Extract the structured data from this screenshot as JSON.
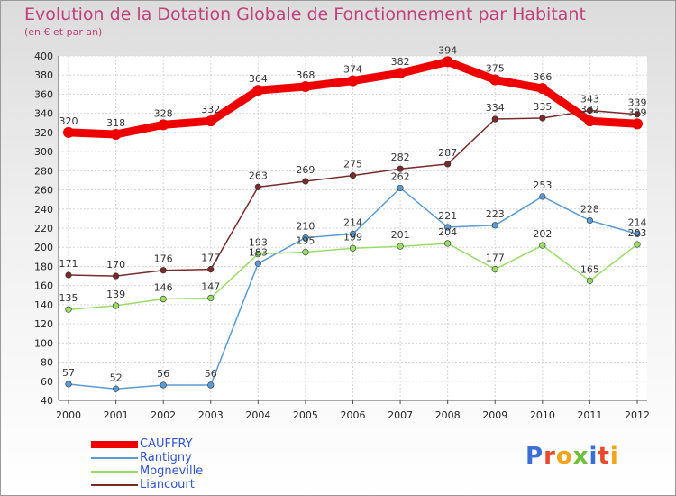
{
  "chart_data": {
    "type": "line",
    "title": "Evolution de la Dotation Globale de Fonctionnement par Habitant",
    "subtitle": "(en € et par an)",
    "categories": [
      "2000",
      "2001",
      "2002",
      "2003",
      "2004",
      "2005",
      "2006",
      "2007",
      "2008",
      "2009",
      "2010",
      "2011",
      "2012"
    ],
    "ylim": [
      40,
      400
    ],
    "yticks": [
      40,
      60,
      80,
      100,
      120,
      140,
      160,
      180,
      200,
      220,
      240,
      260,
      280,
      300,
      320,
      340,
      360,
      380,
      400
    ],
    "grid": true,
    "legend_position": "bottom-left",
    "series": [
      {
        "name": "CAUFFRY",
        "color": "#ee0000",
        "values": [
          320,
          318,
          328,
          332,
          364,
          368,
          374,
          382,
          394,
          375,
          366,
          332,
          329
        ]
      },
      {
        "name": "Rantigny",
        "color": "#5a9bd4",
        "values": [
          57,
          52,
          56,
          56,
          183,
          210,
          214,
          262,
          221,
          223,
          253,
          228,
          214
        ]
      },
      {
        "name": "Mogneville",
        "color": "#99dd66",
        "values": [
          135,
          139,
          146,
          147,
          193,
          195,
          199,
          201,
          204,
          177,
          202,
          165,
          203
        ]
      },
      {
        "name": "Liancourt",
        "color": "#7a2a2a",
        "values": [
          171,
          170,
          176,
          177,
          263,
          269,
          275,
          282,
          287,
          334,
          335,
          343,
          339
        ]
      }
    ]
  },
  "logo": {
    "text": "Proxiti",
    "colors": [
      "#3b6fd6",
      "#e84a2b",
      "#f2a51a",
      "#6fbf3a",
      "#3b6fd6",
      "#e84a2b",
      "#f2a51a"
    ]
  }
}
